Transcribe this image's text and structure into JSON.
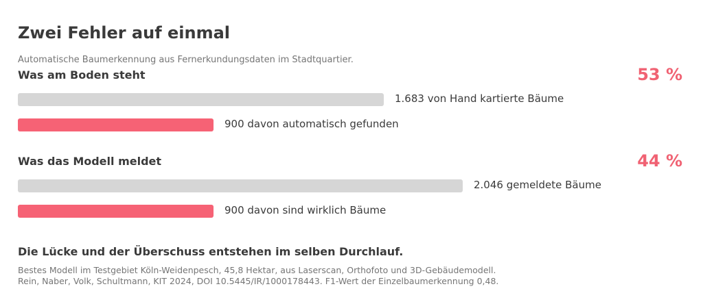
{
  "header": {
    "title": "Zwei Fehler auf einmal",
    "subtitle": "Automatische Baumerkennung aus Fernerkundungsdaten im Stadtquartier."
  },
  "colors": {
    "accent": "#f66275",
    "percent": "#f06273",
    "neutral_bar": "#d6d6d6",
    "text": "#3a3a3a",
    "muted_text": "#757575"
  },
  "chart_data": {
    "type": "bar",
    "orientation": "horizontal",
    "x_max": 2046,
    "groups": [
      {
        "heading": "Was am Boden steht",
        "percent_label": "53 %",
        "bars": [
          {
            "value": 1683,
            "label": "1.683 von Hand kartierte Bäume",
            "kind": "total"
          },
          {
            "value": 900,
            "label": "900 davon automatisch gefunden",
            "kind": "hit"
          }
        ]
      },
      {
        "heading": "Was das Modell meldet",
        "percent_label": "44 %",
        "bars": [
          {
            "value": 2046,
            "label": "2.046 gemeldete Bäume",
            "kind": "total"
          },
          {
            "value": 900,
            "label": "900 davon sind wirklich Bäume",
            "kind": "hit"
          }
        ]
      }
    ]
  },
  "footer": {
    "conclusion": "Die Lücke und der Überschuss entstehen im selben Durchlauf.",
    "source_lines": [
      "Bestes Modell im Testgebiet Köln-Weidenpesch, 45,8 Hektar, aus Laserscan, Orthofoto und 3D-Gebäudemodell.",
      "Rein, Naber, Volk, Schultmann, KIT 2024, DOI 10.5445/IR/1000178443. F1-Wert der Einzelbaumerkennung 0,48."
    ]
  }
}
